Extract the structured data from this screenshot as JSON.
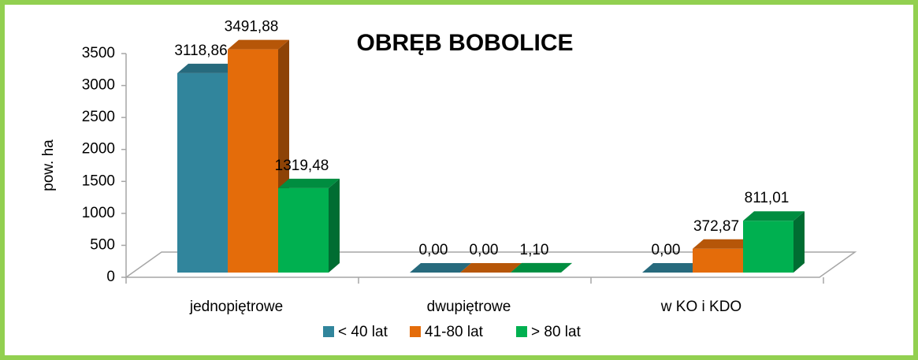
{
  "chart_data": {
    "type": "bar3d",
    "title": "OBRĘB BOBOLICE",
    "y_label": "pow. ha",
    "categories": [
      "jednopiętrowe",
      "dwupiętrowe",
      "w KO i KDO"
    ],
    "series": [
      {
        "name": "< 40 lat",
        "color": "#31859c",
        "values": [
          3118.86,
          0,
          0
        ],
        "value_labels": [
          "3118,86",
          "0,00",
          "0,00"
        ]
      },
      {
        "name": "41-80 lat",
        "color": "#e46c0a",
        "values": [
          3491.88,
          0,
          372.87
        ],
        "value_labels": [
          "3491,88",
          "0,00",
          "372,87"
        ]
      },
      {
        "name": "> 80 lat",
        "color": "#00b050",
        "values": [
          1319.48,
          1.1,
          811.01
        ],
        "value_labels": [
          "1319,48",
          "1,10",
          "811,01"
        ]
      }
    ],
    "ylim": [
      0,
      3500
    ],
    "yticks": [
      0,
      500,
      1000,
      1500,
      2000,
      2500,
      3000,
      3500
    ],
    "grid": false,
    "legend": "bottom"
  }
}
